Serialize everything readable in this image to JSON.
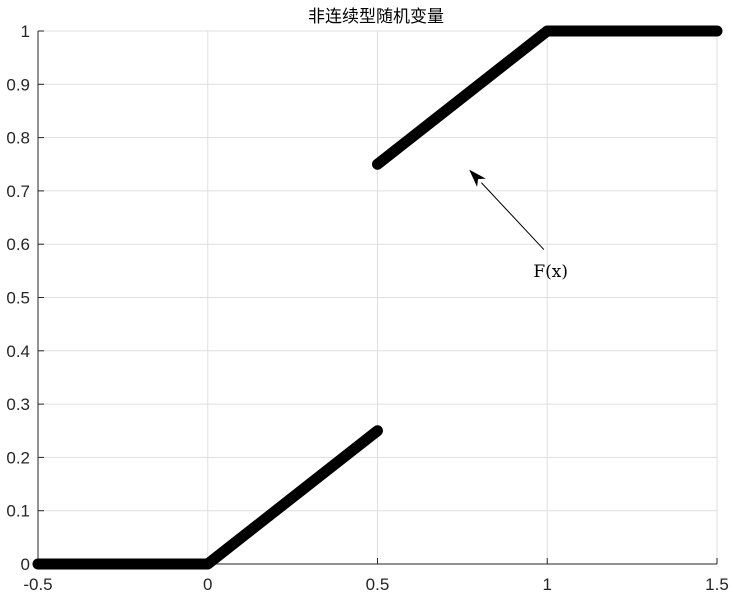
{
  "chart_data": {
    "type": "line",
    "title": "非连续型随机变量",
    "xlabel": "",
    "ylabel": "",
    "xlim": [
      -0.5,
      1.5
    ],
    "ylim": [
      0,
      1
    ],
    "grid": true,
    "x_ticks": [
      "-0.5",
      "0",
      "0.5",
      "1",
      "1.5"
    ],
    "x_tick_values": [
      -0.5,
      0,
      0.5,
      1,
      1.5
    ],
    "y_ticks": [
      "0",
      "0.1",
      "0.2",
      "0.3",
      "0.4",
      "0.5",
      "0.6",
      "0.7",
      "0.8",
      "0.9",
      "1"
    ],
    "y_tick_values": [
      0,
      0.1,
      0.2,
      0.3,
      0.4,
      0.5,
      0.6,
      0.7,
      0.8,
      0.9,
      1
    ],
    "segments": [
      {
        "x": [
          -0.5,
          0,
          0.5
        ],
        "y": [
          0,
          0,
          0.25
        ]
      },
      {
        "x": [
          0.5,
          1,
          1.5
        ],
        "y": [
          0.75,
          1,
          1
        ]
      }
    ],
    "line_color": "#000000",
    "grid_color": "#dfdfdf",
    "axis_color": "#262626",
    "annotation": {
      "text": "F(x)",
      "arrow_from": [
        0.99,
        0.59
      ],
      "arrow_to": [
        0.77,
        0.74
      ],
      "text_at": [
        1.01,
        0.55
      ]
    }
  }
}
